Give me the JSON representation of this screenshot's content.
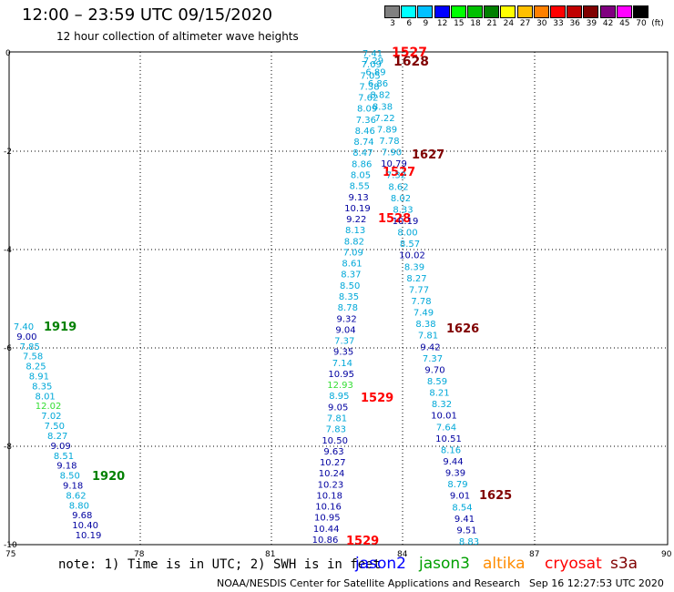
{
  "header": {
    "title": "12:00 – 23:59 UTC 09/15/2020",
    "subtitle": "12 hour collection of altimeter wave heights"
  },
  "scale": {
    "unit": "(ft)",
    "colors": [
      "#808080",
      "#00ffff",
      "#00c0ff",
      "#0000ff",
      "#00ff00",
      "#00c000",
      "#008000",
      "#ffff00",
      "#ffc000",
      "#ff8000",
      "#ff0000",
      "#c00000",
      "#800000",
      "#800080",
      "#ff00ff",
      "#000000"
    ],
    "labels": [
      "3",
      "6",
      "9",
      "12",
      "15",
      "18",
      "21",
      "24",
      "27",
      "30",
      "33",
      "36",
      "39",
      "42",
      "45",
      "70"
    ]
  },
  "axes": {
    "lon_labels": [
      "75",
      "78",
      "81",
      "84",
      "87",
      "90"
    ],
    "lat_labels": [
      "0",
      "-2",
      "-4",
      "-6",
      "-8",
      "-10"
    ]
  },
  "passes": [
    {
      "label": "1527",
      "color": "#ff0000"
    },
    {
      "label": "1628",
      "color": "#800000"
    },
    {
      "label": "1627",
      "color": "#800000"
    },
    {
      "label": "1527",
      "color": "#ff0000"
    },
    {
      "label": "1528",
      "color": "#ff0000"
    },
    {
      "label": "1919",
      "color": "#008000"
    },
    {
      "label": "1626",
      "color": "#800000"
    },
    {
      "label": "1529",
      "color": "#ff0000"
    },
    {
      "label": "1920",
      "color": "#008000"
    },
    {
      "label": "1625",
      "color": "#800000"
    },
    {
      "label": "1529",
      "color": "#ff0000"
    }
  ],
  "tracks": {
    "a": [
      "7.41",
      "7.09",
      "7.05",
      "7.38",
      "7.62",
      "8.09",
      "7.36",
      "8.46",
      "8.74",
      "8.47",
      "8.86",
      "8.05",
      "8.55",
      "9.13",
      "10.19",
      "9.22",
      "8.13",
      "8.82",
      "7.09",
      "8.61",
      "8.37",
      "8.50",
      "8.35",
      "8.78",
      "9.32",
      "9.04",
      "7.37",
      "9.35",
      "7.14",
      "10.95",
      "12.93",
      "8.95",
      "9.05",
      "7.81",
      "7.83",
      "10.50",
      "9.63",
      "10.27",
      "10.24",
      "10.23",
      "10.18",
      "10.16",
      "10.95",
      "10.44",
      "10.86"
    ],
    "b": [
      "7.29",
      "6.89",
      "6.86",
      "8.82",
      "8.38",
      "7.22",
      "7.89",
      "7.78",
      "7.90",
      "10.79",
      "7.32",
      "8.62",
      "8.02",
      "8.33",
      "10.19",
      "8.00",
      "8.57",
      "10.02",
      "8.39",
      "8.27",
      "7.77",
      "7.78",
      "7.49",
      "8.38",
      "7.81",
      "9.42",
      "7.37",
      "9.70",
      "8.59",
      "8.21",
      "8.32",
      "10.01",
      "7.64",
      "10.51",
      "8.16",
      "9.44",
      "9.39",
      "8.79",
      "9.01",
      "8.54",
      "9.41",
      "9.51",
      "8.83"
    ],
    "c": [
      "7.40",
      "9.00",
      "7.85",
      "7.58",
      "8.25",
      "8.91",
      "8.35",
      "8.01",
      "12.02",
      "7.02",
      "7.50",
      "8.27",
      "9.09",
      "8.51",
      "9.18",
      "8.50",
      "9.18",
      "8.62",
      "8.80",
      "9.68",
      "10.40",
      "10.19"
    ]
  },
  "footer": {
    "note": "note: 1) Time is in UTC; 2) SWH is in feet",
    "satellites": [
      {
        "name": "jason2",
        "color": "#0000ff"
      },
      {
        "name": "jason3",
        "color": "#00a000"
      },
      {
        "name": "altika",
        "color": "#ff8c00"
      },
      {
        "name": "cryosat",
        "color": "#ff0000"
      },
      {
        "name": "s3a",
        "color": "#800000"
      }
    ],
    "credit": "NOAA/NESDIS Center for Satellite Applications and Research",
    "timestamp": "Sep 16 12:27:53 UTC 2020"
  }
}
